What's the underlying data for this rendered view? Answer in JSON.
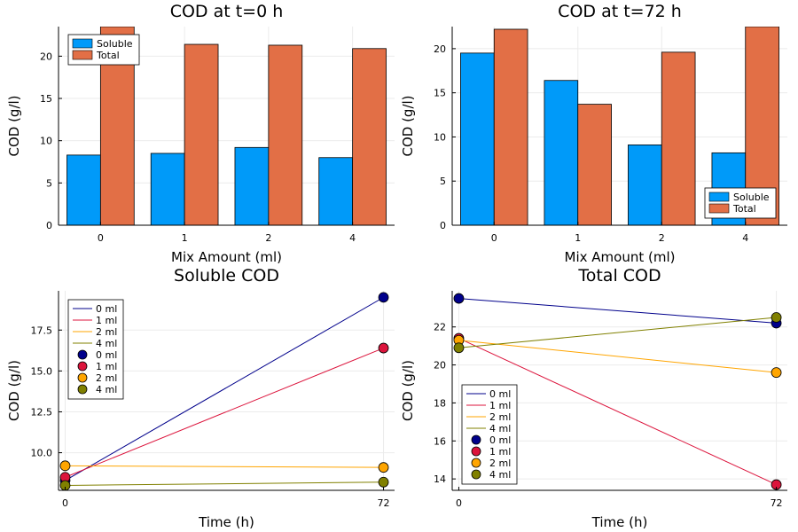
{
  "colors": {
    "soluble": "#009AF9",
    "total": "#E26F46",
    "s0": "#00008B",
    "s1": "#DC143C",
    "s2": "#FFA500",
    "s4": "#808000",
    "grid": "#EBEBEB",
    "axis": "#000000"
  },
  "chart_data": [
    {
      "type": "bar",
      "title": "COD at t=0 h",
      "xlabel": "Mix Amount (ml)",
      "ylabel": "COD (g/l)",
      "categories": [
        "0",
        "1",
        "2",
        "4"
      ],
      "ylim": [
        0,
        23.5
      ],
      "yticks": [
        0,
        5,
        10,
        15,
        20
      ],
      "grid": true,
      "legend_position": "top-left",
      "series": [
        {
          "name": "Soluble",
          "color_key": "soluble",
          "values": [
            8.3,
            8.5,
            9.2,
            8.0
          ]
        },
        {
          "name": "Total",
          "color_key": "total",
          "values": [
            23.5,
            21.4,
            21.3,
            20.9
          ]
        }
      ]
    },
    {
      "type": "bar",
      "title": "COD at t=72 h",
      "xlabel": "Mix Amount (ml)",
      "ylabel": "COD (g/l)",
      "categories": [
        "0",
        "1",
        "2",
        "4"
      ],
      "ylim": [
        0,
        22.5
      ],
      "yticks": [
        0,
        5,
        10,
        15,
        20
      ],
      "grid": true,
      "legend_position": "bottom-right",
      "series": [
        {
          "name": "Soluble",
          "color_key": "soluble",
          "values": [
            19.5,
            16.4,
            9.1,
            8.2
          ]
        },
        {
          "name": "Total",
          "color_key": "total",
          "values": [
            22.2,
            13.7,
            19.6,
            22.5
          ]
        }
      ]
    },
    {
      "type": "line",
      "title": "Soluble COD",
      "xlabel": "Time (h)",
      "ylabel": "COD (g/l)",
      "xlim": [
        -1.5,
        74.5
      ],
      "ylim": [
        7.7,
        19.9
      ],
      "xticks": [
        0,
        72
      ],
      "yticks": [
        10.0,
        12.5,
        15.0,
        17.5
      ],
      "ytick_labels": [
        "10.0",
        "12.5",
        "15.0",
        "17.5"
      ],
      "grid": true,
      "legend_position": "top-left",
      "x": [
        0,
        72
      ],
      "series": [
        {
          "name": "0 ml",
          "color_key": "s0",
          "values": [
            8.3,
            19.5
          ]
        },
        {
          "name": "1 ml",
          "color_key": "s1",
          "values": [
            8.5,
            16.4
          ]
        },
        {
          "name": "2 ml",
          "color_key": "s2",
          "values": [
            9.2,
            9.1
          ]
        },
        {
          "name": "4 ml",
          "color_key": "s4",
          "values": [
            8.0,
            8.2
          ]
        }
      ]
    },
    {
      "type": "line",
      "title": "Total COD",
      "xlabel": "Time (h)",
      "ylabel": "COD (g/l)",
      "xlim": [
        -1.5,
        74.5
      ],
      "ylim": [
        13.4,
        23.9
      ],
      "xticks": [
        0,
        72
      ],
      "yticks": [
        14,
        16,
        18,
        20,
        22
      ],
      "ytick_labels": [
        "14",
        "16",
        "18",
        "20",
        "22"
      ],
      "grid": true,
      "legend_position": "bottom-left",
      "x": [
        0,
        72
      ],
      "series": [
        {
          "name": "0 ml",
          "color_key": "s0",
          "values": [
            23.5,
            22.2
          ]
        },
        {
          "name": "1 ml",
          "color_key": "s1",
          "values": [
            21.4,
            13.7
          ]
        },
        {
          "name": "2 ml",
          "color_key": "s2",
          "values": [
            21.3,
            19.6
          ]
        },
        {
          "name": "4 ml",
          "color_key": "s4",
          "values": [
            20.9,
            22.5
          ]
        }
      ]
    }
  ]
}
